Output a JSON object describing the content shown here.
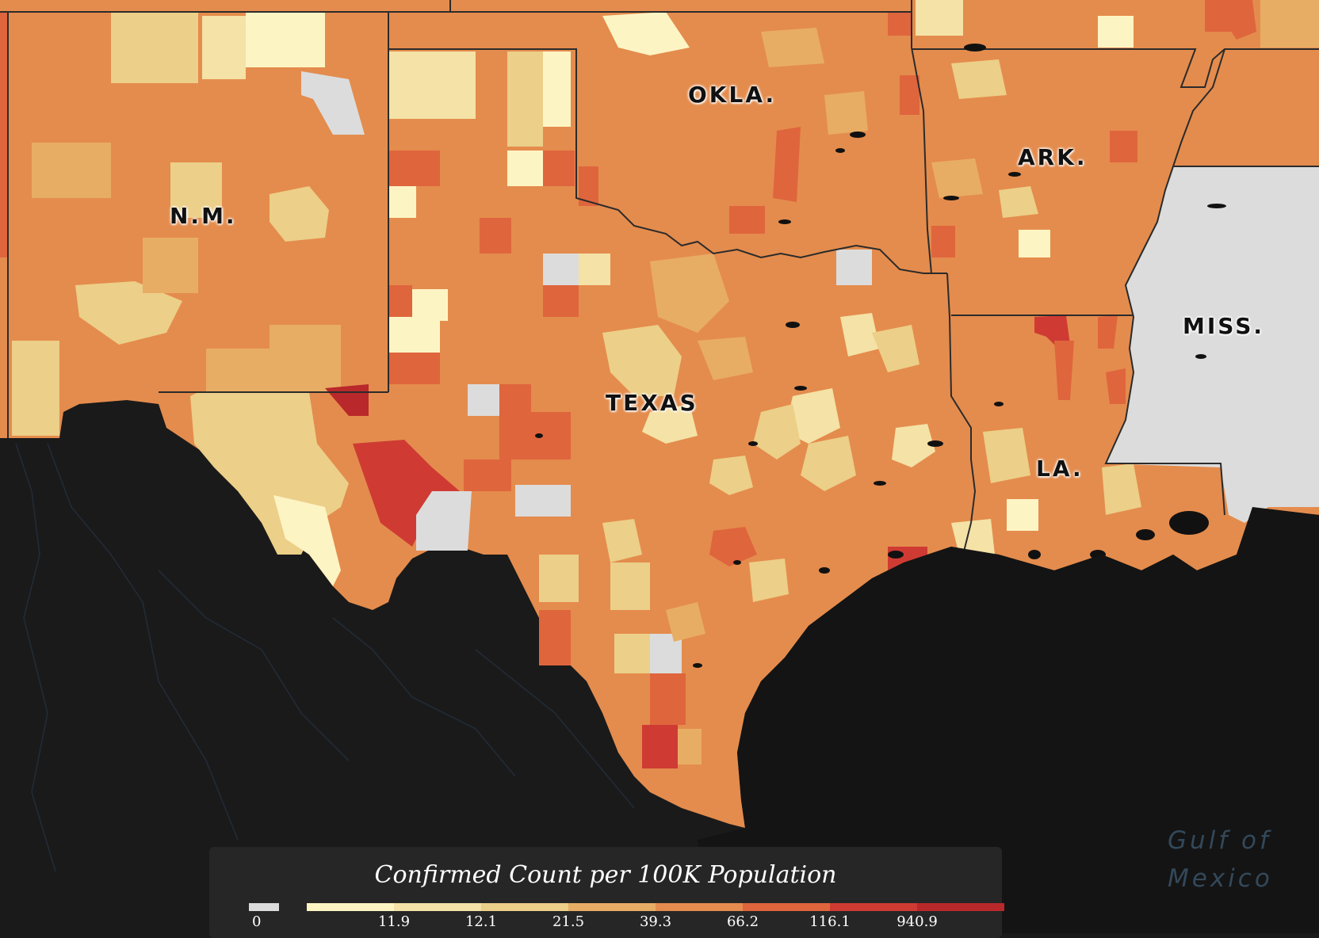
{
  "map": {
    "state_labels": {
      "nm": "N.M.",
      "okla": "OKLA.",
      "ark": "ARK.",
      "texas": "TEXAS",
      "miss": "MISS.",
      "la": "LA."
    },
    "water_label_line1": "Gulf of",
    "water_label_line2": "Mexico"
  },
  "legend": {
    "title": "Confirmed Count per 100K Population",
    "zero_label": "0",
    "zero_color": "#dcdcdc",
    "ticks": [
      "11.9",
      "12.1",
      "21.5",
      "39.3",
      "66.2",
      "116.1",
      "940.9"
    ],
    "colors": [
      "#fdf4c4",
      "#f4e2a6",
      "#eccf88",
      "#e8ad65",
      "#e48c4d",
      "#df653d",
      "#cf3b33",
      "#b9282a"
    ]
  },
  "colors": {
    "land_dark": "#1a1a1a",
    "no_data": "#dcdcdc",
    "border": "#2b2b2b"
  }
}
